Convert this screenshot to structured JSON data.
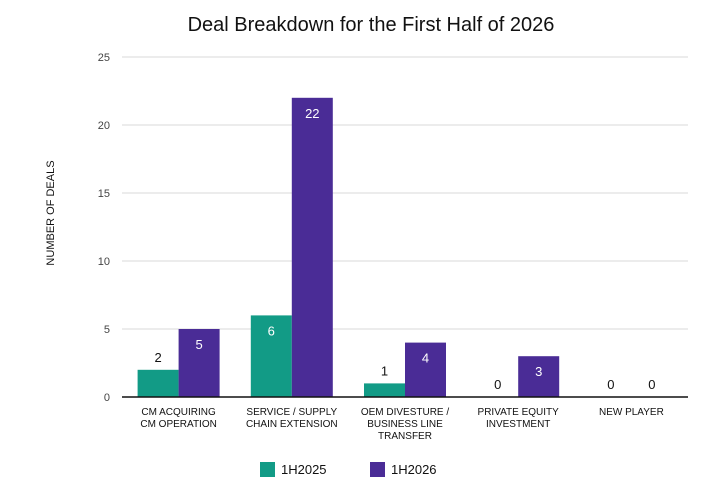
{
  "chart_data": {
    "type": "bar",
    "title": "Deal Breakdown for the First Half of 2026",
    "xlabel": "",
    "ylabel": "NUMBER OF DEALS",
    "ylim": [
      0,
      25
    ],
    "yticks": [
      0,
      5,
      10,
      15,
      20,
      25
    ],
    "grid": true,
    "legend_position": "bottom",
    "categories": [
      [
        "CM ACQUIRING",
        "CM OPERATION"
      ],
      [
        "SERVICE / SUPPLY",
        "CHAIN EXTENSION"
      ],
      [
        "OEM DIVESTURE /",
        "BUSINESS LINE",
        "TRANSFER"
      ],
      [
        "PRIVATE EQUITY",
        "INVESTMENT"
      ],
      [
        "NEW PLAYER"
      ]
    ],
    "series": [
      {
        "name": "1H2025",
        "color": "#129B86",
        "values": [
          2,
          6,
          1,
          0,
          0
        ]
      },
      {
        "name": "1H2026",
        "color": "#4A2C96",
        "values": [
          5,
          22,
          4,
          3,
          0
        ]
      }
    ]
  }
}
